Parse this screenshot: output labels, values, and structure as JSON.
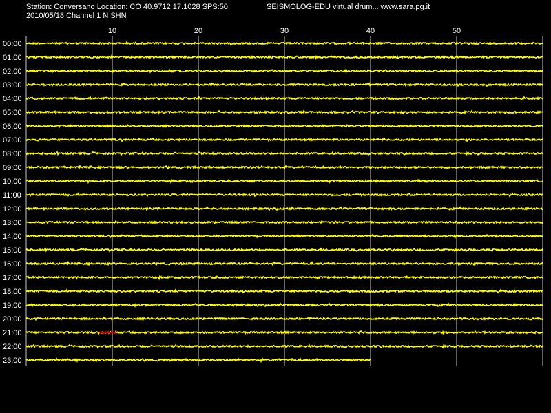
{
  "header": {
    "station_line": "Station: Conversano Location: CO 40.9712 17.1028 SPS:50",
    "brand_line": "SEISMOLOG-EDU virtual drum... www.sara.pg.it",
    "date_line": "2010/05/18  Channel 1 N SHN"
  },
  "colors": {
    "background": "#000000",
    "trace": "#ffff00",
    "event": "#cc0000",
    "grid": "#c8c8c8",
    "text": "#ffffff"
  },
  "chart_data": {
    "type": "line",
    "title": "",
    "xlabel": "",
    "ylabel": "",
    "x_unit_range": [
      0,
      60
    ],
    "x_ticks": [
      10,
      20,
      30,
      40,
      50
    ],
    "x_tick_labels": [
      "10",
      "20",
      "30",
      "40",
      "50"
    ],
    "grid": true,
    "hour_labels": [
      "00:00",
      "01:00",
      "02:00",
      "03:00",
      "04:00",
      "05:00",
      "06:00",
      "07:00",
      "08:00",
      "09:00",
      "10:00",
      "11:00",
      "12:00",
      "13:00",
      "14:00",
      "15:00",
      "16:00",
      "17:00",
      "18:00",
      "19:00",
      "20:00",
      "21:00",
      "22:00",
      "23:00"
    ],
    "trace_end_minute": [
      60,
      60,
      60,
      60,
      60,
      60,
      60,
      60,
      60,
      60,
      60,
      60,
      60,
      60,
      60,
      60,
      60,
      60,
      60,
      60,
      60,
      60,
      60,
      40
    ],
    "event_marker": {
      "hour": "21:00",
      "start_minute": 8.5,
      "end_minute": 10.5
    }
  }
}
